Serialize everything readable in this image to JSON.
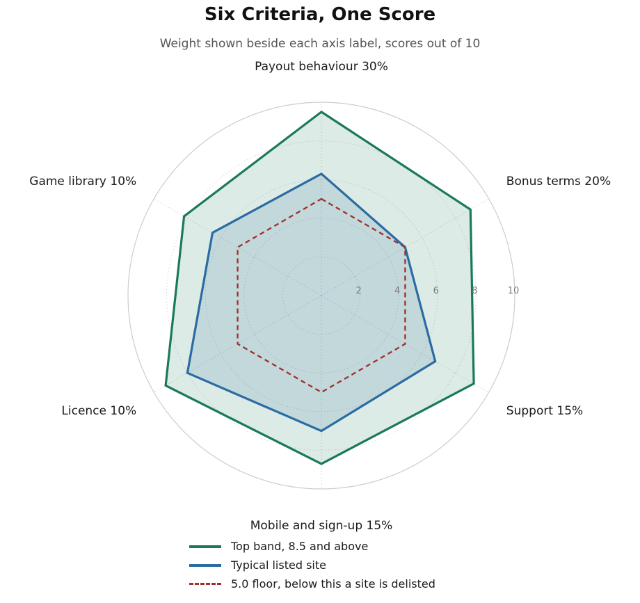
{
  "title": "Six Criteria, One Score",
  "subtitle": "Weight shown beside each axis label, scores out of 10",
  "chart_data": {
    "type": "radar",
    "axes": [
      {
        "name": "Payout behaviour",
        "weight": "30%"
      },
      {
        "name": "Bonus terms",
        "weight": "20%"
      },
      {
        "name": "Support",
        "weight": "15%"
      },
      {
        "name": "Mobile and sign-up",
        "weight": "15%"
      },
      {
        "name": "Licence",
        "weight": "10%"
      },
      {
        "name": "Game library",
        "weight": "10%"
      }
    ],
    "rlim": [
      0,
      10
    ],
    "rticks": [
      2,
      4,
      6,
      8,
      10
    ],
    "series": [
      {
        "name": "Top band, 8.5 and above",
        "values": [
          9.5,
          8.9,
          9.1,
          8.7,
          9.3,
          8.2
        ],
        "color": "#1a7a58",
        "fill": "#1a7a58",
        "style": "solid"
      },
      {
        "name": "Typical listed site",
        "values": [
          6.3,
          5.0,
          6.8,
          7.0,
          8.0,
          6.5
        ],
        "color": "#2a6ca2",
        "fill": "#2a6ca2",
        "style": "solid"
      },
      {
        "name": "5.0 floor, below this a site is delisted",
        "values": [
          5.0,
          5.0,
          5.0,
          5.0,
          5.0,
          5.0
        ],
        "color": "#a0302d",
        "style": "dashed"
      }
    ],
    "grid": true,
    "legend_position": "bottom"
  }
}
